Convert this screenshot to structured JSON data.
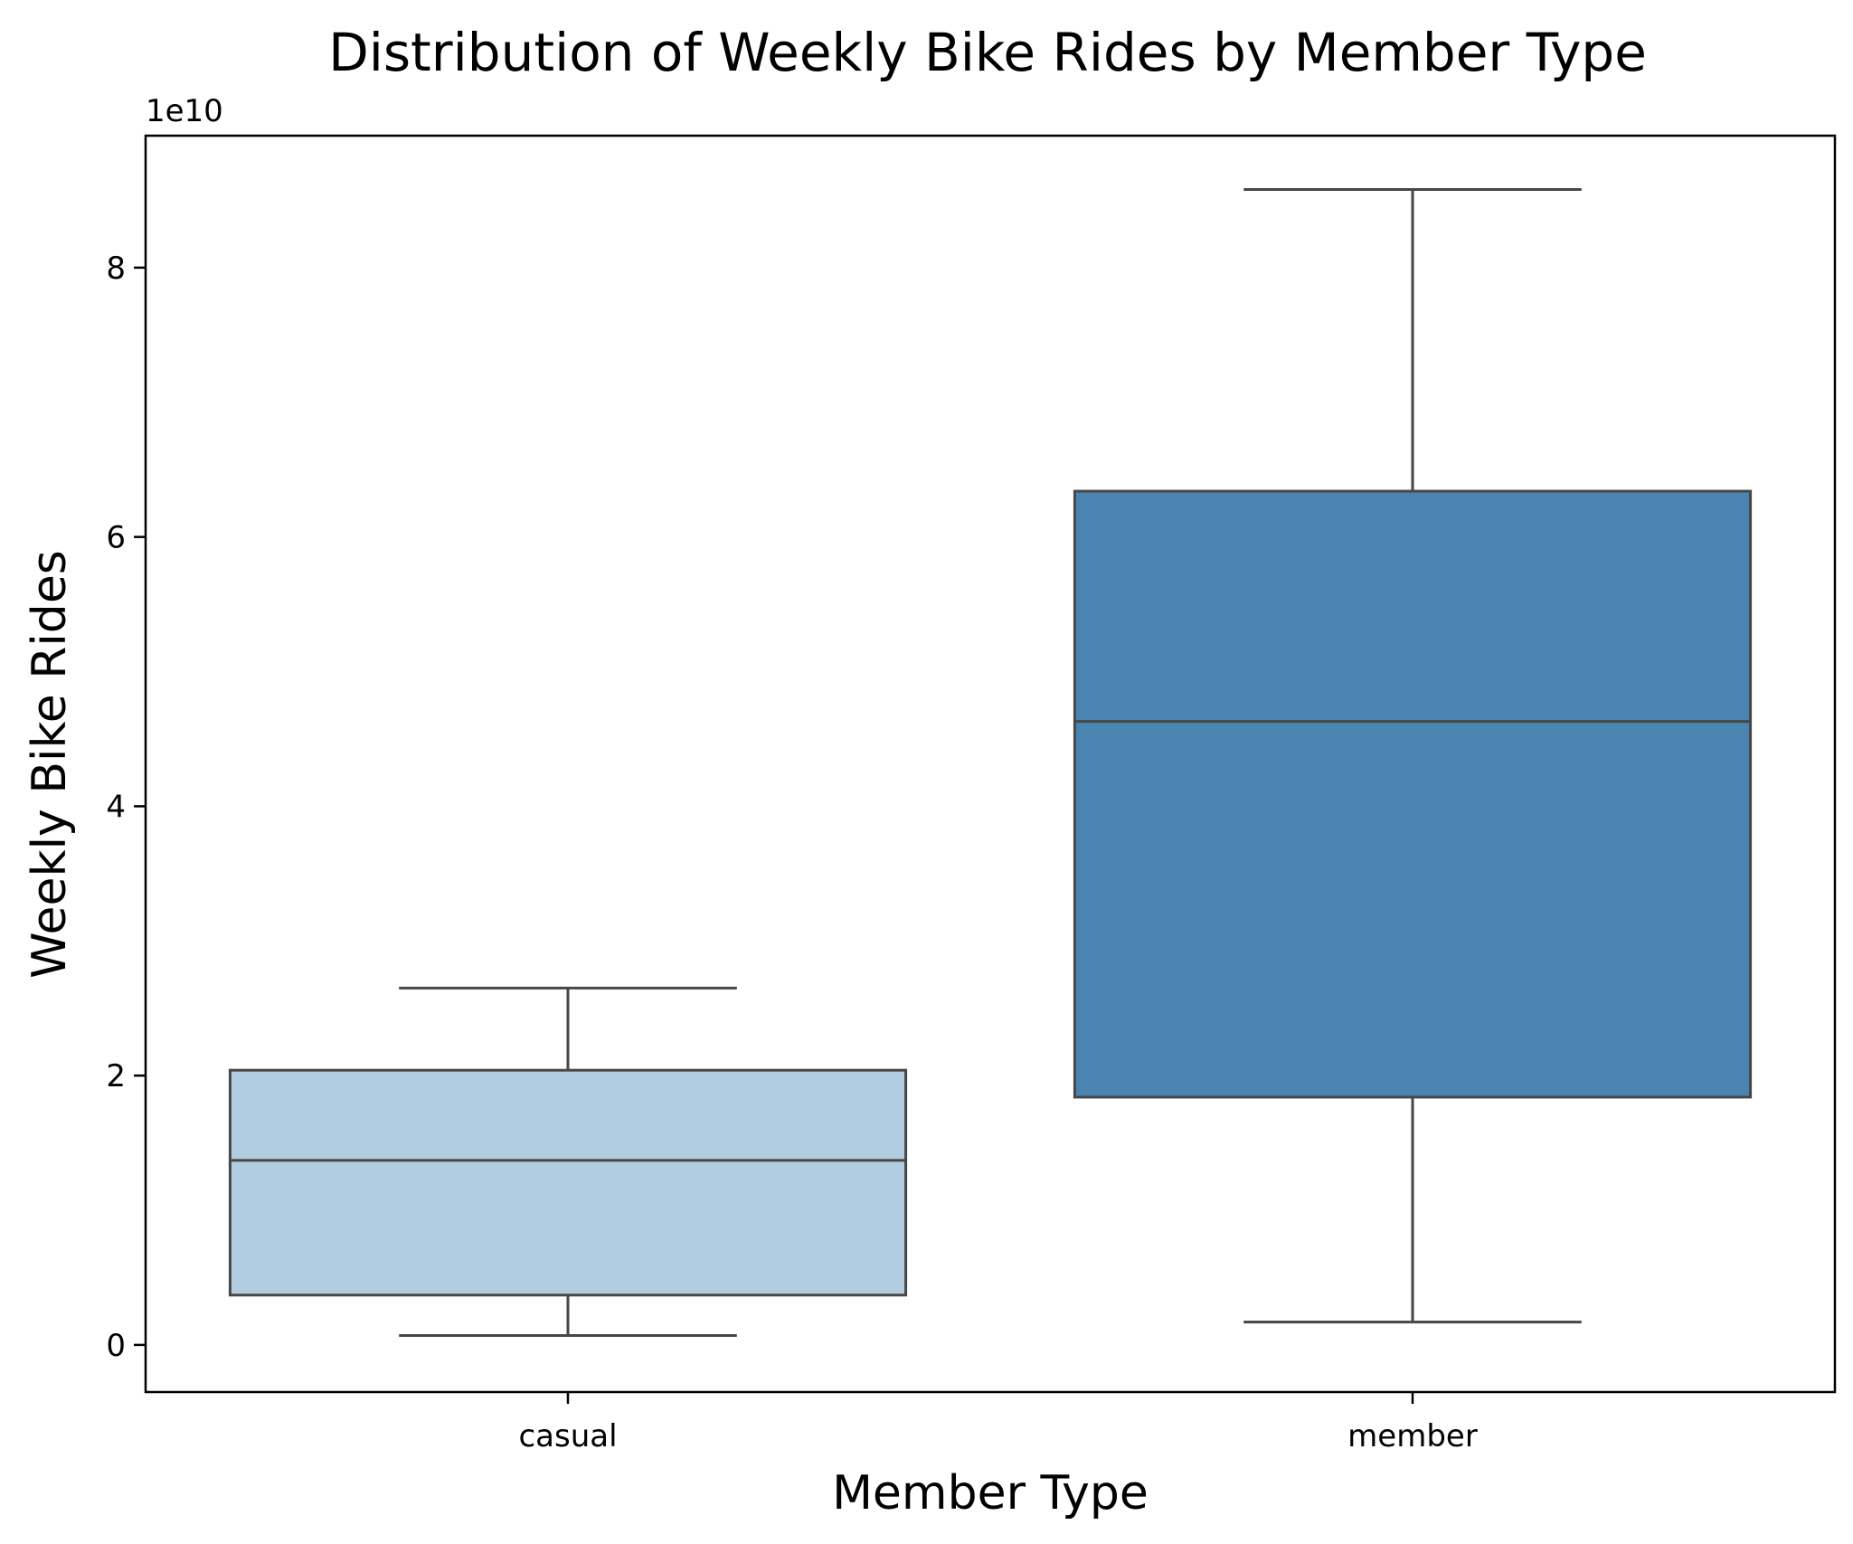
{
  "chart_data": {
    "type": "box",
    "title": "Distribution of Weekly Bike Rides by Member Type",
    "xlabel": "Member Type",
    "ylabel": "Weekly Bike Rides",
    "y_offset_label": "1e10",
    "y_multiplier": 10000000000,
    "ylim": [
      -0.35,
      8.98
    ],
    "yticks": [
      0,
      2,
      4,
      6,
      8
    ],
    "grid": false,
    "categories": [
      "casual",
      "member"
    ],
    "boxes": [
      {
        "category": "casual",
        "whisker_low": 0.07,
        "q1": 0.37,
        "median": 1.37,
        "q3": 2.04,
        "whisker_high": 2.65,
        "color": "#b1cde0"
      },
      {
        "category": "member",
        "whisker_low": 0.17,
        "q1": 1.84,
        "median": 4.63,
        "q3": 6.34,
        "whisker_high": 8.58,
        "color": "#4a84b0"
      }
    ],
    "line_color": "#474747"
  }
}
